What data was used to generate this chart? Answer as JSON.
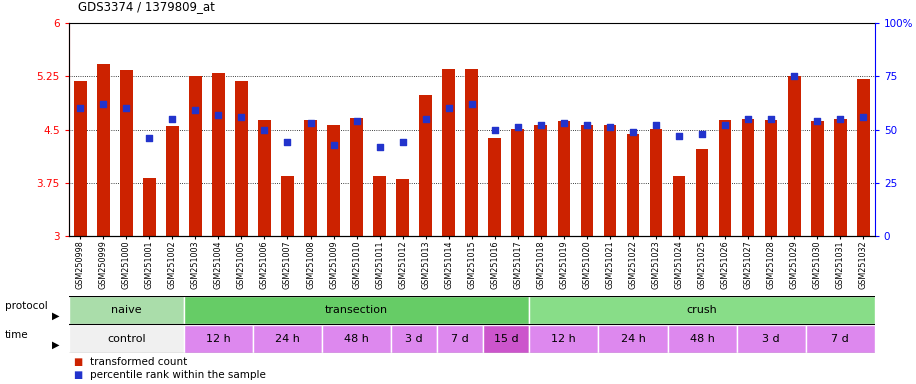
{
  "title": "GDS3374 / 1379809_at",
  "categories": [
    "GSM250998",
    "GSM250999",
    "GSM251000",
    "GSM251001",
    "GSM251002",
    "GSM251003",
    "GSM251004",
    "GSM251005",
    "GSM251006",
    "GSM251007",
    "GSM251008",
    "GSM251009",
    "GSM251010",
    "GSM251011",
    "GSM251012",
    "GSM251013",
    "GSM251014",
    "GSM251015",
    "GSM251016",
    "GSM251017",
    "GSM251018",
    "GSM251019",
    "GSM251020",
    "GSM251021",
    "GSM251022",
    "GSM251023",
    "GSM251024",
    "GSM251025",
    "GSM251026",
    "GSM251027",
    "GSM251028",
    "GSM251029",
    "GSM251030",
    "GSM251031",
    "GSM251032"
  ],
  "bar_values": [
    5.19,
    5.43,
    5.34,
    3.82,
    4.55,
    5.26,
    5.29,
    5.18,
    4.64,
    3.84,
    4.63,
    4.57,
    4.67,
    3.84,
    3.8,
    4.99,
    5.36,
    5.36,
    4.38,
    4.51,
    4.57,
    4.62,
    4.57,
    4.57,
    4.44,
    4.51,
    3.85,
    4.22,
    4.63,
    4.65,
    4.63,
    5.26,
    4.62,
    4.65,
    5.21
  ],
  "percentile_values": [
    60,
    62,
    60,
    46,
    55,
    59,
    57,
    56,
    50,
    44,
    53,
    43,
    54,
    42,
    44,
    55,
    60,
    62,
    50,
    51,
    52,
    53,
    52,
    51,
    49,
    52,
    47,
    48,
    52,
    55,
    55,
    75,
    54,
    55,
    56
  ],
  "ylim": [
    3.0,
    6.0
  ],
  "yticks_left": [
    3.0,
    3.75,
    4.5,
    5.25,
    6.0
  ],
  "ytick_labels_left": [
    "3",
    "3.75",
    "4.5",
    "5.25",
    "6"
  ],
  "yticks_right": [
    0,
    25,
    50,
    75,
    100
  ],
  "ytick_labels_right": [
    "0",
    "25",
    "50",
    "75",
    "100%"
  ],
  "hlines": [
    3.75,
    4.5,
    5.25
  ],
  "bar_color": "#cc2200",
  "dot_color": "#2233cc",
  "bar_bottom": 3.0,
  "protocol_groups": [
    {
      "label": "naive",
      "start": 0,
      "end": 4,
      "color": "#aaddaa"
    },
    {
      "label": "transection",
      "start": 5,
      "end": 19,
      "color": "#66cc66"
    },
    {
      "label": "crush",
      "start": 20,
      "end": 34,
      "color": "#88dd88"
    }
  ],
  "time_groups": [
    {
      "label": "control",
      "start": 0,
      "end": 4,
      "color": "#f0f0f0"
    },
    {
      "label": "12 h",
      "start": 5,
      "end": 7,
      "color": "#dd88ee"
    },
    {
      "label": "24 h",
      "start": 8,
      "end": 10,
      "color": "#dd88ee"
    },
    {
      "label": "48 h",
      "start": 11,
      "end": 13,
      "color": "#dd88ee"
    },
    {
      "label": "3 d",
      "start": 14,
      "end": 15,
      "color": "#dd88ee"
    },
    {
      "label": "7 d",
      "start": 16,
      "end": 17,
      "color": "#dd88ee"
    },
    {
      "label": "15 d",
      "start": 18,
      "end": 19,
      "color": "#cc55cc"
    },
    {
      "label": "12 h",
      "start": 20,
      "end": 22,
      "color": "#dd88ee"
    },
    {
      "label": "24 h",
      "start": 23,
      "end": 25,
      "color": "#dd88ee"
    },
    {
      "label": "48 h",
      "start": 26,
      "end": 28,
      "color": "#dd88ee"
    },
    {
      "label": "3 d",
      "start": 29,
      "end": 31,
      "color": "#dd88ee"
    },
    {
      "label": "7 d",
      "start": 32,
      "end": 34,
      "color": "#dd88ee"
    }
  ],
  "plot_bg": "#ffffff"
}
